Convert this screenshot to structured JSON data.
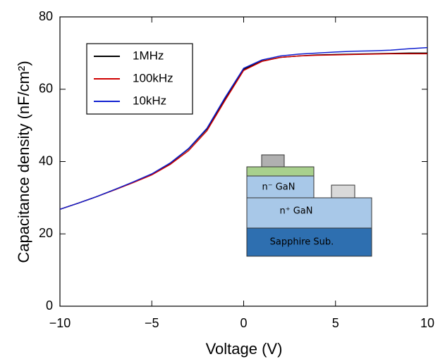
{
  "chart_data": {
    "type": "line",
    "x_label": "Voltage (V)",
    "y_label": "Capacitance density (nF/cm²)",
    "x": [
      -10,
      -9,
      -8,
      -7,
      -6,
      -5,
      -4,
      -3,
      -2,
      -1,
      0,
      1,
      2,
      3,
      4,
      5,
      6,
      7,
      8,
      9,
      10
    ],
    "series": [
      {
        "name": "1MHz",
        "color": "#000000",
        "values": [
          26.8,
          28.5,
          30.3,
          32.3,
          34.3,
          36.5,
          39.5,
          43.5,
          49,
          57.5,
          65.5,
          67.8,
          68.8,
          69.2,
          69.5,
          69.6,
          69.7,
          69.8,
          69.9,
          70,
          70
        ]
      },
      {
        "name": "100kHz",
        "color": "#d00000",
        "values": [
          26.8,
          28.5,
          30.3,
          32.2,
          34.2,
          36.3,
          39.2,
          43,
          48.5,
          57,
          65.2,
          67.7,
          68.8,
          69.2,
          69.4,
          69.5,
          69.6,
          69.7,
          69.8,
          69.8,
          69.8
        ]
      },
      {
        "name": "10kHz",
        "color": "#1020d0",
        "values": [
          26.8,
          28.5,
          30.3,
          32.3,
          34.4,
          36.6,
          39.6,
          43.6,
          49.2,
          57.8,
          65.8,
          68.1,
          69.2,
          69.7,
          70,
          70.3,
          70.5,
          70.6,
          70.8,
          71.2,
          71.5
        ]
      }
    ],
    "xlim": [
      -10,
      10
    ],
    "xticks": [
      {
        "value": -10,
        "label": "−10"
      },
      {
        "value": -5,
        "label": "−5"
      },
      0,
      5,
      10
    ],
    "ylim": [
      0,
      80
    ],
    "yticks": [
      0,
      20,
      40,
      60,
      80
    ],
    "legend": "upper left",
    "annotations": [
      "n⁻ GaN",
      "n⁺ GaN",
      "Sapphire Sub."
    ]
  }
}
